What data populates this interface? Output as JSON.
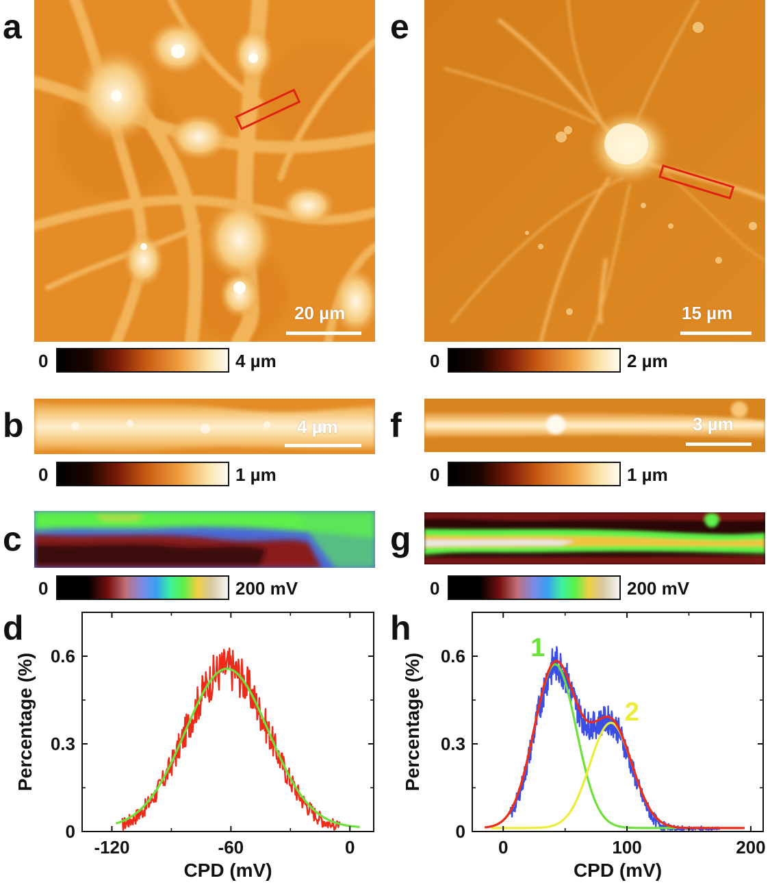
{
  "panels": {
    "a": {
      "label": "a",
      "scale_text": "20 µm",
      "cbar_min": "0",
      "cbar_max": "4 µm"
    },
    "b": {
      "label": "b",
      "scale_text": "4 µm",
      "cbar_min": "0",
      "cbar_max": "1 µm"
    },
    "c": {
      "label": "c",
      "cbar_min": "0",
      "cbar_max": "200 mV"
    },
    "d": {
      "label": "d"
    },
    "e": {
      "label": "e",
      "scale_text": "15 µm",
      "cbar_min": "0",
      "cbar_max": "2 µm"
    },
    "f": {
      "label": "f",
      "scale_text": "3 µm",
      "cbar_min": "0",
      "cbar_max": "1 µm"
    },
    "g": {
      "label": "g",
      "cbar_min": "0",
      "cbar_max": "200 mV"
    },
    "h": {
      "label": "h"
    }
  },
  "colors": {
    "afm_orange": "#e68a1e",
    "fit_green": "#6ee03c",
    "data_red": "#ee2a1a",
    "data_blue": "#3a4ee6",
    "fit_yellow": "#ecec3a"
  },
  "chart_data": [
    {
      "type": "line",
      "panel": "d",
      "xlabel": "CPD (mV)",
      "ylabel": "Percentage (%)",
      "xlim": [
        -135,
        12
      ],
      "ylim": [
        0,
        0.75
      ],
      "xticks": [
        -120,
        -60,
        0
      ],
      "xtick_labels": [
        "-120",
        "-60",
        "0"
      ],
      "yticks": [
        0,
        0.3,
        0.6
      ],
      "ytick_labels": [
        "0",
        "0.3",
        "0.6"
      ],
      "series": [
        {
          "kind": "histogram",
          "color": "#ee2a1a",
          "x_range": [
            -115,
            -5
          ],
          "gaussian": {
            "amp": 0.56,
            "mean": -62,
            "sigma": 21
          },
          "noise": 0.06
        },
        {
          "kind": "fit",
          "color": "#6ee03c",
          "x_range": [
            -118,
            5
          ],
          "gaussian": {
            "amp": 0.545,
            "mean": -62,
            "sigma": 21
          }
        }
      ]
    },
    {
      "type": "line",
      "panel": "h",
      "xlabel": "CPD (mV)",
      "ylabel": "Percentage (%)",
      "xlim": [
        -25,
        210
      ],
      "ylim": [
        0,
        0.75
      ],
      "xticks": [
        0,
        100,
        200
      ],
      "xtick_labels": [
        "0",
        "100",
        "200"
      ],
      "yticks": [
        0,
        0.3,
        0.6
      ],
      "ytick_labels": [
        "0",
        "0.3",
        "0.6"
      ],
      "annotations": [
        {
          "text": "1",
          "x": 28,
          "y": 0.6,
          "color": "#6ee03c"
        },
        {
          "text": "2",
          "x": 104,
          "y": 0.38,
          "color": "#ecec3a"
        }
      ],
      "series": [
        {
          "kind": "histogram",
          "color": "#3a4ee6",
          "x_range": [
            5,
            175
          ],
          "gaussians": [
            {
              "amp": 0.56,
              "mean": 42,
              "sigma": 17
            },
            {
              "amp": 0.36,
              "mean": 87,
              "sigma": 17
            }
          ],
          "noise": 0.05
        },
        {
          "kind": "fit",
          "color": "#6ee03c",
          "x_range": [
            -10,
            140
          ],
          "gaussian": {
            "amp": 0.56,
            "mean": 42,
            "sigma": 17
          }
        },
        {
          "kind": "fit",
          "color": "#ecec3a",
          "x_range": [
            -10,
            190
          ],
          "gaussian": {
            "amp": 0.36,
            "mean": 87,
            "sigma": 17
          }
        },
        {
          "kind": "fit_sum",
          "color": "#ee2a1a",
          "x_range": [
            -15,
            195
          ],
          "gaussians": [
            {
              "amp": 0.56,
              "mean": 42,
              "sigma": 17
            },
            {
              "amp": 0.36,
              "mean": 87,
              "sigma": 17
            }
          ]
        }
      ]
    }
  ]
}
